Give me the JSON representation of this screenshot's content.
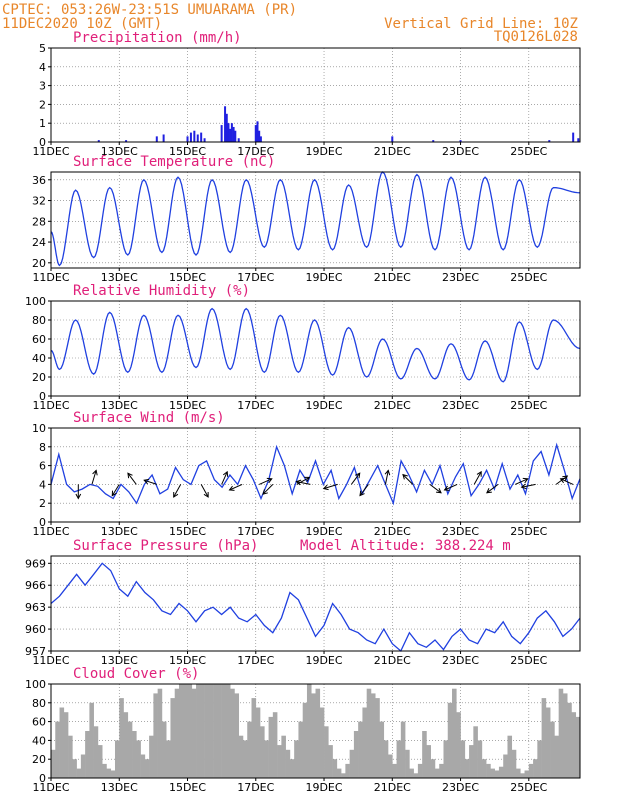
{
  "header": {
    "line1": "CPTEC:  053:26W-23:51S  UMUARAMA (PR)",
    "line2": "11DEC2020 10Z (GMT)",
    "right1": "Vertical Grid Line: 10Z",
    "right2": "TQ0126L028"
  },
  "x_ticks": [
    "11DEC",
    "13DEC",
    "15DEC",
    "17DEC",
    "19DEC",
    "21DEC",
    "23DEC",
    "25DEC"
  ],
  "x_tick_positions_days": [
    0,
    2,
    4,
    6,
    8,
    10,
    12,
    14
  ],
  "x_range_days": [
    0,
    15.5
  ],
  "colors": {
    "line": "#2040e0",
    "bars": "#2020e0",
    "cloud": "#a8a8a8",
    "title": "#e0207a",
    "header": "#e8862a"
  },
  "chart_data": [
    {
      "type": "bar",
      "title": "Precipitation (mm/h)",
      "ylim": [
        0,
        5
      ],
      "yticks": [
        0,
        1,
        2,
        3,
        4,
        5
      ],
      "x": [
        1.4,
        2.2,
        3.1,
        3.3,
        4.0,
        4.1,
        4.2,
        4.3,
        4.4,
        4.5,
        5.0,
        5.1,
        5.15,
        5.2,
        5.25,
        5.3,
        5.35,
        5.4,
        5.5,
        6.0,
        6.05,
        6.1,
        6.15,
        10.0,
        11.2,
        12.0,
        14.6,
        15.3,
        15.45
      ],
      "values": [
        0.1,
        0.1,
        0.3,
        0.4,
        0.3,
        0.5,
        0.6,
        0.4,
        0.5,
        0.2,
        0.9,
        1.9,
        1.5,
        1.0,
        0.7,
        1.0,
        0.8,
        0.6,
        0.2,
        0.9,
        1.1,
        0.6,
        0.3,
        0.3,
        0.1,
        0.1,
        0.1,
        0.5,
        0.2
      ]
    },
    {
      "type": "line",
      "title": "Surface Temperature (nC)",
      "ylim": [
        19,
        37.5
      ],
      "yticks": [
        20,
        24,
        28,
        32,
        36
      ],
      "min_values": [
        19.5,
        21,
        21.5,
        22,
        21.5,
        22,
        23,
        22.5,
        22.5,
        23,
        23,
        22.5,
        22.5,
        22.5,
        23
      ],
      "max_values": [
        34,
        34.5,
        36,
        36.5,
        36,
        36,
        36,
        36,
        35,
        37.5,
        37,
        36.5,
        36.5,
        36,
        34.5
      ],
      "start_value": 26,
      "end_value": 33.5
    },
    {
      "type": "line",
      "title": "Relative Humidity (%)",
      "ylim": [
        0,
        100
      ],
      "yticks": [
        0,
        20,
        40,
        60,
        80,
        100
      ],
      "max_values": [
        80,
        88,
        85,
        85,
        92,
        92,
        85,
        80,
        72,
        60,
        50,
        55,
        58,
        78,
        80
      ],
      "min_values": [
        28,
        23,
        25,
        25,
        30,
        28,
        25,
        25,
        22,
        20,
        18,
        18,
        17,
        15,
        28
      ],
      "start_value": 48,
      "end_value": 50
    },
    {
      "type": "line",
      "title": "Surface Wind (m/s)",
      "ylim": [
        0,
        10
      ],
      "yticks": [
        0,
        2,
        4,
        6,
        8,
        10
      ],
      "values": [
        4,
        7.2,
        4,
        3.2,
        3.5,
        4,
        3.8,
        3,
        2.5,
        4,
        3.2,
        2,
        4,
        5,
        3,
        3.5,
        5.8,
        4.5,
        4,
        6,
        6.5,
        4.5,
        3.7,
        5,
        4,
        6,
        4.5,
        2.5,
        4.5,
        8,
        6,
        3,
        5.5,
        4.2,
        6.5,
        4,
        5.5,
        2.5,
        4,
        5.8,
        3,
        4.5,
        6,
        4,
        2,
        6.5,
        5,
        3.2,
        5.5,
        4,
        6,
        3,
        4.8,
        6.2,
        2.8,
        4,
        5.5,
        3.5,
        6.2,
        3.5,
        5,
        3,
        6.5,
        7.5,
        5,
        8.2,
        5.5,
        2.5,
        4.6
      ],
      "arrows": [
        {
          "day": 0.8,
          "u": 0,
          "v": -1
        },
        {
          "day": 1.2,
          "u": 0.3,
          "v": 1
        },
        {
          "day": 2.0,
          "u": -0.5,
          "v": -0.8
        },
        {
          "day": 2.5,
          "u": -0.6,
          "v": 0.8
        },
        {
          "day": 3.1,
          "u": -0.9,
          "v": 0.3
        },
        {
          "day": 3.8,
          "u": -0.5,
          "v": -0.9
        },
        {
          "day": 4.4,
          "u": 0.5,
          "v": -0.9
        },
        {
          "day": 5.0,
          "u": 0.4,
          "v": 0.9
        },
        {
          "day": 5.6,
          "u": -0.9,
          "v": -0.4
        },
        {
          "day": 6.1,
          "u": 0.9,
          "v": 0.4
        },
        {
          "day": 6.5,
          "u": -0.7,
          "v": -0.7
        },
        {
          "day": 7.2,
          "u": 0.9,
          "v": 0.5
        },
        {
          "day": 7.6,
          "u": -1,
          "v": 0.2
        },
        {
          "day": 8.4,
          "u": -1,
          "v": -0.3
        },
        {
          "day": 8.8,
          "u": 0.6,
          "v": 0.8
        },
        {
          "day": 9.3,
          "u": -0.6,
          "v": -0.8
        },
        {
          "day": 9.8,
          "u": 0.2,
          "v": 1
        },
        {
          "day": 10.6,
          "u": -0.7,
          "v": 0.7
        },
        {
          "day": 11.1,
          "u": 0.8,
          "v": -0.6
        },
        {
          "day": 11.9,
          "u": -0.9,
          "v": -0.4
        },
        {
          "day": 12.4,
          "u": 0.5,
          "v": 0.9
        },
        {
          "day": 13.1,
          "u": -0.8,
          "v": -0.6
        },
        {
          "day": 13.6,
          "u": 0.9,
          "v": 0.4
        },
        {
          "day": 14.2,
          "u": -1,
          "v": -0.2
        },
        {
          "day": 14.8,
          "u": 0.8,
          "v": 0.6
        },
        {
          "day": 15.3,
          "u": -0.9,
          "v": 0.4
        }
      ]
    },
    {
      "type": "line",
      "title": "Surface Pressure (hPa)",
      "annotation": "Model Altitude: 388.224 m",
      "ylim": [
        957,
        970
      ],
      "yticks": [
        957,
        960,
        963,
        966,
        969
      ],
      "values": [
        963.5,
        964.5,
        966,
        967.5,
        966,
        967.5,
        969,
        968,
        965.5,
        964.5,
        966.5,
        965,
        964,
        962.5,
        962,
        963.5,
        962.5,
        961,
        962.5,
        963,
        962,
        963,
        961.5,
        961,
        962,
        960.5,
        959.5,
        961.5,
        965,
        964,
        961.5,
        959,
        960.5,
        963.5,
        962,
        960,
        959.5,
        958.5,
        958,
        960,
        958,
        957,
        959.5,
        958,
        957.5,
        958.5,
        957.2,
        959,
        960,
        958.5,
        958,
        960,
        959.5,
        961,
        959,
        958,
        959.5,
        961.5,
        962.5,
        961,
        959,
        960,
        961.5
      ]
    },
    {
      "type": "bar",
      "title": "Cloud Cover (%)",
      "ylim": [
        0,
        100
      ],
      "yticks": [
        0,
        20,
        40,
        60,
        80,
        100
      ],
      "values": [
        30,
        60,
        75,
        70,
        45,
        20,
        10,
        25,
        50,
        80,
        55,
        35,
        15,
        10,
        8,
        40,
        85,
        70,
        60,
        50,
        40,
        25,
        20,
        45,
        90,
        95,
        60,
        40,
        85,
        95,
        100,
        100,
        100,
        95,
        100,
        100,
        100,
        100,
        100,
        100,
        100,
        100,
        95,
        90,
        45,
        40,
        60,
        85,
        75,
        55,
        40,
        65,
        70,
        35,
        45,
        30,
        20,
        40,
        60,
        80,
        100,
        90,
        95,
        75,
        55,
        35,
        20,
        10,
        5,
        15,
        30,
        50,
        60,
        75,
        95,
        90,
        85,
        60,
        40,
        25,
        15,
        40,
        60,
        30,
        10,
        5,
        15,
        50,
        35,
        20,
        10,
        15,
        40,
        80,
        95,
        70,
        40,
        20,
        35,
        55,
        40,
        20,
        15,
        10,
        8,
        12,
        25,
        45,
        30,
        10,
        5,
        8,
        15,
        20,
        40,
        85,
        75,
        60,
        45,
        95,
        90,
        80,
        70,
        65
      ]
    }
  ]
}
